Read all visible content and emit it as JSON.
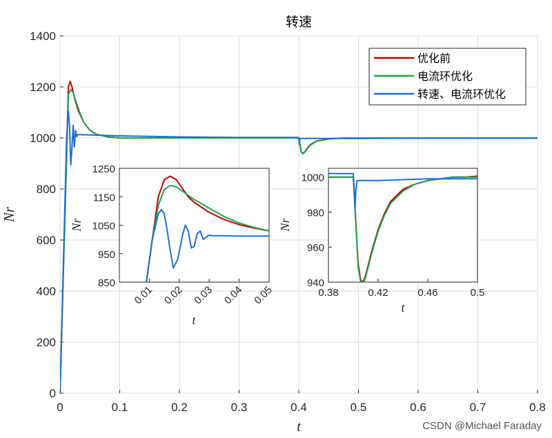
{
  "watermark": "CSDN @Michael Faraday",
  "colors": {
    "series1": "#c00000",
    "series2": "#1fa34a",
    "series3": "#1f6fd0"
  },
  "chart_data": [
    {
      "type": "line",
      "title": "转速",
      "xlabel": "t",
      "ylabel": "Nr",
      "xlim": [
        0,
        0.8
      ],
      "ylim": [
        0,
        1400
      ],
      "xticks": [
        "0",
        "0.1",
        "0.2",
        "0.3",
        "0.4",
        "0.5",
        "0.6",
        "0.7",
        "0.8"
      ],
      "yticks": [
        "0",
        "200",
        "400",
        "600",
        "800",
        "1000",
        "1200",
        "1400"
      ],
      "grid": true,
      "legend_position": "top-right",
      "series": [
        {
          "name": "优化前",
          "color": "#c00000",
          "x": [
            0,
            0.014,
            0.017,
            0.02,
            0.025,
            0.03,
            0.04,
            0.05,
            0.06,
            0.08,
            0.1,
            0.2,
            0.3,
            0.4,
            0.402,
            0.404,
            0.407,
            0.41,
            0.415,
            0.42,
            0.43,
            0.45,
            0.47,
            0.5,
            0.6,
            0.7,
            0.8
          ],
          "y": [
            0,
            1200,
            1222,
            1200,
            1150,
            1110,
            1060,
            1030,
            1015,
            1004,
            1000,
            1000,
            1000,
            1000,
            975,
            945,
            940,
            945,
            962,
            975,
            988,
            996,
            999,
            1000,
            1000,
            1000,
            1000
          ]
        },
        {
          "name": "电流环优化",
          "color": "#1fa34a",
          "x": [
            0,
            0.014,
            0.018,
            0.022,
            0.027,
            0.033,
            0.04,
            0.05,
            0.06,
            0.08,
            0.1,
            0.2,
            0.3,
            0.4,
            0.402,
            0.404,
            0.407,
            0.41,
            0.415,
            0.42,
            0.43,
            0.45,
            0.47,
            0.5,
            0.6,
            0.7,
            0.8
          ],
          "y": [
            0,
            1170,
            1190,
            1178,
            1140,
            1100,
            1060,
            1030,
            1015,
            1004,
            1000,
            1000,
            1000,
            1000,
            975,
            945,
            938,
            944,
            960,
            973,
            987,
            996,
            999,
            1000,
            1000,
            1000,
            1000
          ]
        },
        {
          "name": "转速、电流环优化",
          "color": "#1f6fd0",
          "x": [
            0,
            0.011,
            0.014,
            0.016,
            0.018,
            0.02,
            0.022,
            0.024,
            0.026,
            0.028,
            0.03,
            0.035,
            0.05,
            0.1,
            0.2,
            0.3,
            0.4,
            0.401,
            0.402,
            0.404,
            0.41,
            0.5,
            0.6,
            0.7,
            0.8
          ],
          "y": [
            0,
            1000,
            1105,
            1050,
            895,
            960,
            1050,
            965,
            1030,
            1005,
            1013,
            1013,
            1012,
            1008,
            1004,
            1002,
            1002,
            975,
            998,
            998,
            998,
            998,
            999,
            999,
            999
          ]
        }
      ]
    },
    {
      "type": "line",
      "title": "",
      "xlabel": "t",
      "ylabel": "Nr",
      "xlim": [
        0,
        0.05
      ],
      "ylim": [
        850,
        1250
      ],
      "xticks": [
        "0.01",
        "0.02",
        "0.03",
        "0.04",
        "0.05"
      ],
      "yticks": [
        "850",
        "950",
        "1050",
        "1150",
        "1250"
      ],
      "grid": false,
      "series": [
        {
          "name": "优化前",
          "color": "#c00000",
          "x": [
            0.009,
            0.011,
            0.013,
            0.015,
            0.017,
            0.019,
            0.021,
            0.023,
            0.025,
            0.03,
            0.035,
            0.04,
            0.045,
            0.05
          ],
          "y": [
            850,
            1000,
            1150,
            1210,
            1222,
            1210,
            1180,
            1150,
            1130,
            1095,
            1070,
            1052,
            1040,
            1030
          ]
        },
        {
          "name": "电流环优化",
          "color": "#1fa34a",
          "x": [
            0.009,
            0.011,
            0.013,
            0.015,
            0.017,
            0.019,
            0.021,
            0.025,
            0.03,
            0.035,
            0.04,
            0.045,
            0.05
          ],
          "y": [
            850,
            1000,
            1120,
            1175,
            1190,
            1185,
            1170,
            1140,
            1110,
            1080,
            1058,
            1042,
            1030
          ]
        },
        {
          "name": "转速、电流环优化",
          "color": "#1f6fd0",
          "x": [
            0.009,
            0.011,
            0.013,
            0.014,
            0.015,
            0.016,
            0.017,
            0.018,
            0.0195,
            0.021,
            0.022,
            0.023,
            0.024,
            0.025,
            0.026,
            0.027,
            0.028,
            0.029,
            0.03,
            0.031,
            0.035,
            0.04,
            0.045,
            0.05
          ],
          "y": [
            850,
            1000,
            1090,
            1105,
            1090,
            1030,
            960,
            900,
            930,
            1010,
            1050,
            1030,
            970,
            975,
            1020,
            1030,
            1000,
            1008,
            1015,
            1013,
            1013,
            1012,
            1012,
            1012
          ]
        }
      ]
    },
    {
      "type": "line",
      "title": "",
      "xlabel": "t",
      "ylabel": "Nr",
      "xlim": [
        0.38,
        0.5
      ],
      "ylim": [
        940,
        1005
      ],
      "xticks": [
        "0.38",
        "0.42",
        "0.46",
        "0.5"
      ],
      "yticks": [
        "940",
        "960",
        "980",
        "1000"
      ],
      "grid": false,
      "series": [
        {
          "name": "优化前",
          "color": "#c00000",
          "x": [
            0.38,
            0.4,
            0.402,
            0.404,
            0.406,
            0.408,
            0.41,
            0.415,
            0.42,
            0.425,
            0.43,
            0.44,
            0.45,
            0.46,
            0.47,
            0.48,
            0.49,
            0.5
          ],
          "y": [
            1000,
            1000,
            975,
            950,
            941,
            940,
            944,
            958,
            970,
            979,
            986,
            993,
            996,
            998,
            999,
            1000,
            1000,
            1000.5
          ]
        },
        {
          "name": "电流环优化",
          "color": "#1fa34a",
          "x": [
            0.38,
            0.4,
            0.402,
            0.404,
            0.406,
            0.408,
            0.41,
            0.415,
            0.42,
            0.425,
            0.43,
            0.44,
            0.45,
            0.46,
            0.47,
            0.48,
            0.49,
            0.5
          ],
          "y": [
            1000,
            1000,
            974,
            948,
            940,
            939,
            943,
            957,
            969,
            978,
            985,
            992,
            996,
            998,
            999,
            1000,
            1000,
            1000
          ]
        },
        {
          "name": "转速、电流环优化",
          "color": "#1f6fd0",
          "x": [
            0.38,
            0.4,
            0.401,
            0.4015,
            0.402,
            0.403,
            0.404,
            0.41,
            0.42,
            0.44,
            0.46,
            0.48,
            0.5
          ],
          "y": [
            1002,
            1002,
            990,
            982,
            992,
            998,
            998,
            998,
            998,
            998.5,
            999,
            999,
            999
          ]
        }
      ]
    }
  ]
}
